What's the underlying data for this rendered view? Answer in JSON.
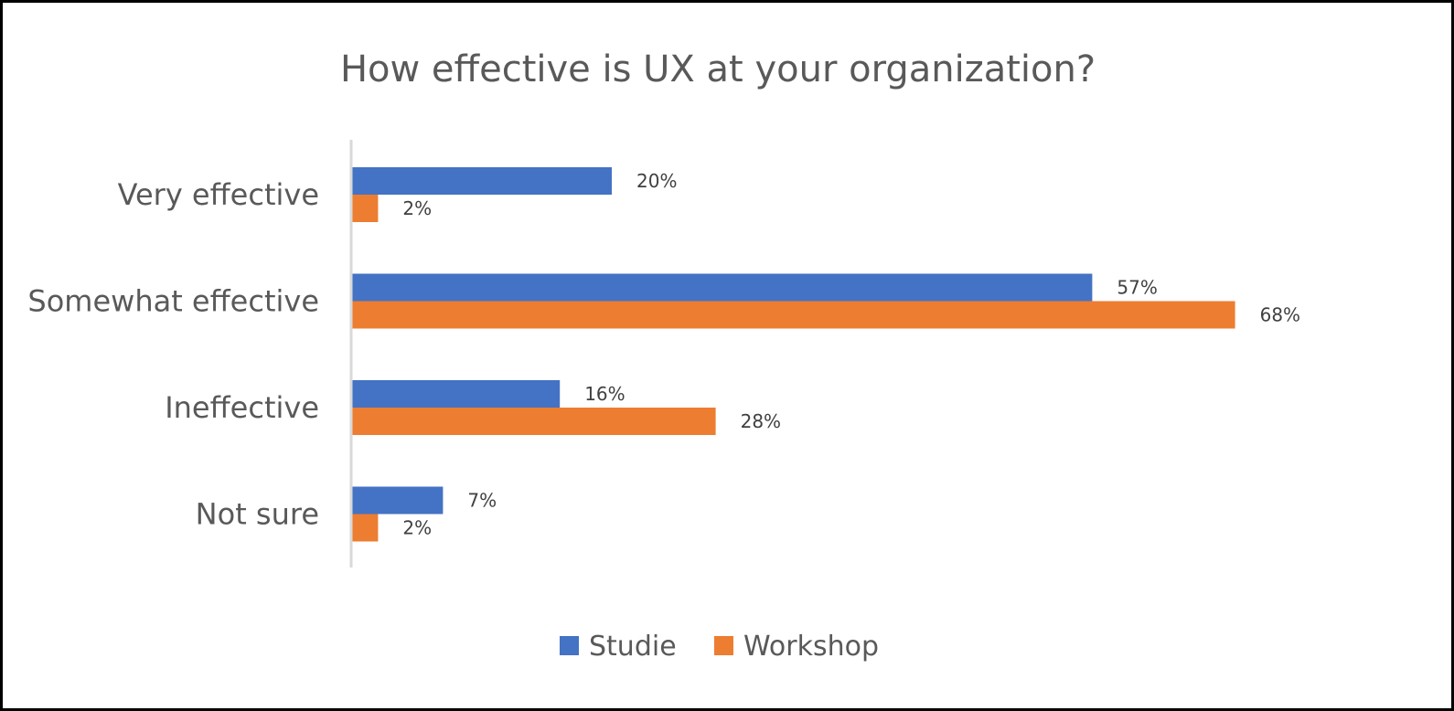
{
  "chart_data": {
    "type": "bar",
    "orientation": "horizontal",
    "title": "How effective is UX at your organization?",
    "categories": [
      "Very effective",
      "Somewhat effective",
      "Ineffective",
      "Not sure"
    ],
    "series": [
      {
        "name": "Studie",
        "color": "#4472C4",
        "values": [
          20,
          57,
          16,
          7
        ],
        "labels": [
          "20%",
          "57%",
          "16%",
          "7%"
        ]
      },
      {
        "name": "Workshop",
        "color": "#ED7D31",
        "values": [
          2,
          68,
          28,
          2
        ],
        "labels": [
          "2%",
          "68%",
          "28%",
          "2%"
        ]
      }
    ],
    "value_unit": "%",
    "xlim": [
      0,
      80
    ],
    "grid": false,
    "value_axis_visible": false,
    "legend_position": "bottom",
    "axis_line_color": "#D9D9D9"
  }
}
